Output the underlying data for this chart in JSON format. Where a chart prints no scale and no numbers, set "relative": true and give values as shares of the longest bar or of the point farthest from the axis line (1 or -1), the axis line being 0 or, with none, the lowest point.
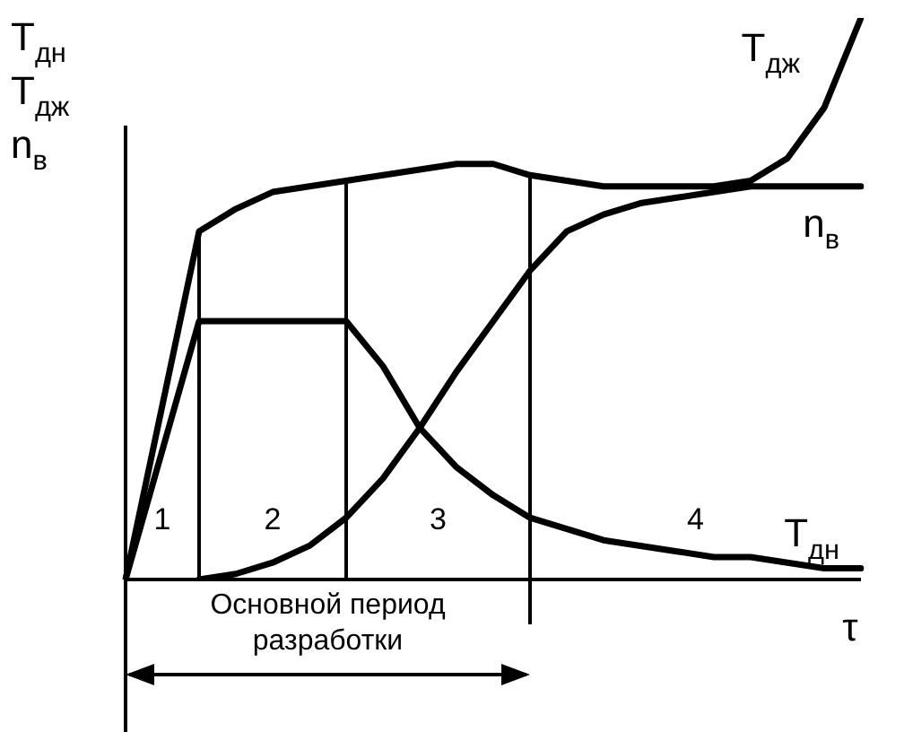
{
  "chart_data": {
    "type": "line",
    "relative": true,
    "ylabel": "T$_{дн}$ T$_{дж}$ n$_{в}$",
    "xlabel": "τ",
    "marker": "none",
    "line_style": "solid",
    "categories": [
      null,
      null,
      null,
      null,
      null,
      null,
      null,
      null,
      null,
      null,
      null,
      null,
      null,
      null,
      null,
      null,
      null,
      null,
      null,
      null,
      null
    ],
    "series": [
      {
        "name": "T$_{дж}$",
        "color": "#000000",
        "values": [
          0,
          0.31,
          0.62,
          0.66,
          0.69,
          0.7,
          0.71,
          0.72,
          0.73,
          0.74,
          0.74,
          0.72,
          0.71,
          0.7,
          0.7,
          0.7,
          0.7,
          0.71,
          0.75,
          0.84,
          1
        ]
      },
      {
        "name": "n$_{в}$",
        "color": "#000000",
        "values": [
          null,
          null,
          0,
          0.01,
          0.03,
          0.06,
          0.11,
          0.18,
          0.27,
          0.37,
          0.46,
          0.55,
          0.62,
          0.65,
          0.67,
          0.68,
          0.69,
          0.7,
          0.7,
          0.7,
          0.7
        ]
      },
      {
        "name": "T$_{дн}$",
        "color": "#000000",
        "values": [
          0,
          0.23,
          0.46,
          0.46,
          0.46,
          0.46,
          0.46,
          0.38,
          0.27,
          0.2,
          0.15,
          0.11,
          0.09,
          0.07,
          0.06,
          0.05,
          0.04,
          0.04,
          0.03,
          0.02,
          0.02
        ]
      }
    ],
    "annotations": [
      "1",
      "2",
      "3",
      "4",
      "Основной период разработки"
    ]
  }
}
